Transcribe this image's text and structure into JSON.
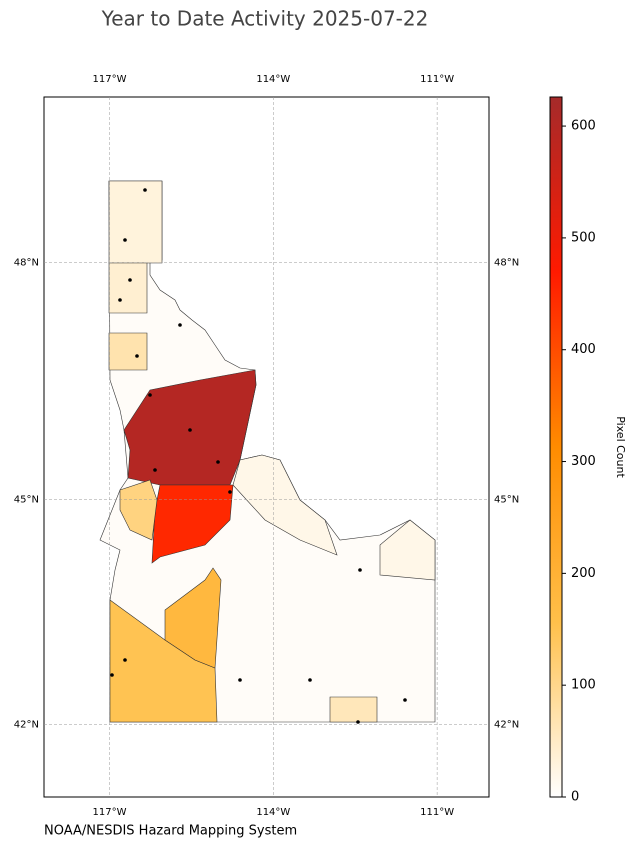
{
  "map": {
    "title": "Year to Date Activity 2025-07-22",
    "credit": "NOAA/NESDIS Hazard Mapping System",
    "xlim": [
      -118.2,
      -110.05
    ],
    "ylim": [
      41,
      50
    ],
    "lon_ticks": [
      {
        "value": -117,
        "label": "117°W"
      },
      {
        "value": -114,
        "label": "114°W"
      },
      {
        "value": -111,
        "label": "111°W"
      }
    ],
    "lat_ticks": [
      {
        "value": 48,
        "label": "48°N"
      },
      {
        "value": 45,
        "label": "45°N"
      },
      {
        "value": 42,
        "label": "42°N"
      }
    ],
    "grid": true,
    "colorbar": {
      "label": "Pixel Count",
      "lim": [
        0,
        626
      ],
      "ticks": [
        0,
        100,
        200,
        300,
        400,
        500,
        600
      ],
      "colormap": [
        "#ffffff",
        "#ffc04a",
        "#ff8c00",
        "#ff1a00",
        "#a52a2a"
      ]
    },
    "region_values": [
      600,
      450,
      150,
      180,
      110,
      30,
      40,
      70,
      60,
      20,
      20
    ]
  }
}
